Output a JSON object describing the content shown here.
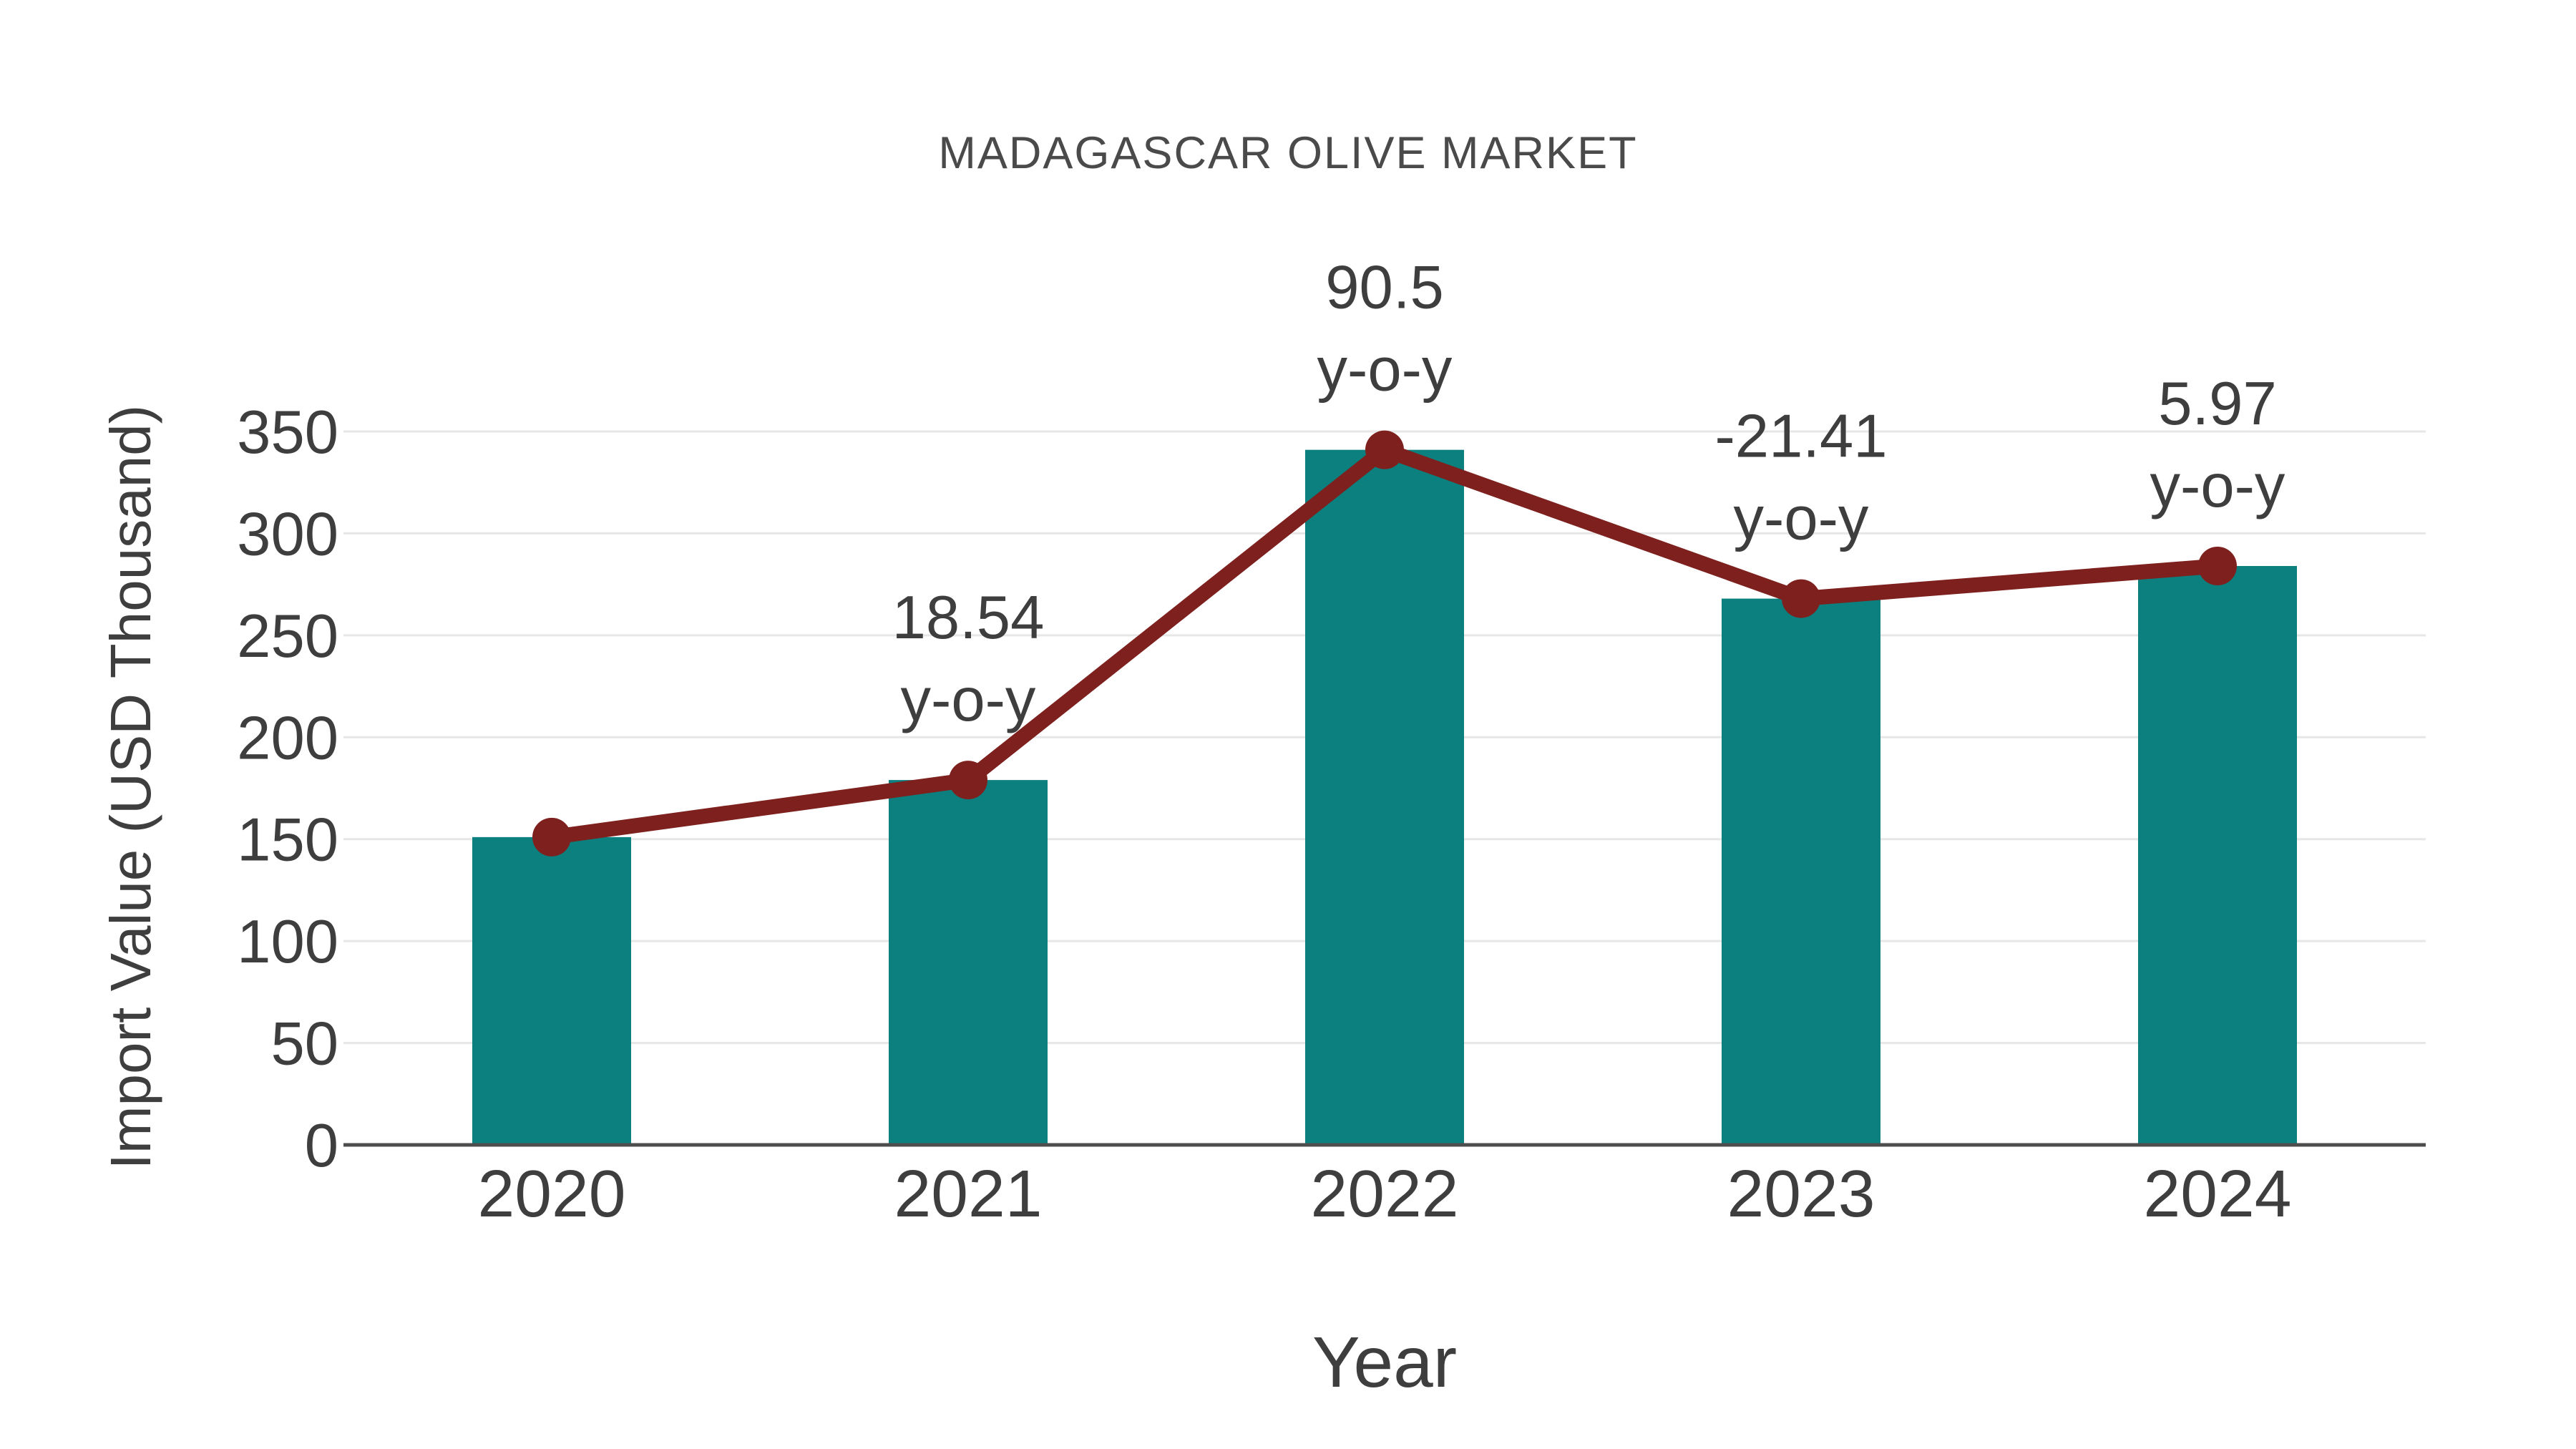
{
  "page": {
    "background": "#ffffff"
  },
  "chart_data": {
    "type": "bar",
    "title": "MADAGASCAR OLIVE MARKET",
    "xlabel": "Year",
    "ylabel": "Import Value (USD Thousand)",
    "categories": [
      "2020",
      "2021",
      "2022",
      "2023",
      "2024"
    ],
    "series": [
      {
        "type": "bar",
        "color": "#0b807e",
        "values": [
          151,
          179,
          341,
          268,
          284
        ]
      },
      {
        "type": "line",
        "color": "#7d201e",
        "values": [
          151,
          179,
          341,
          268,
          284
        ]
      }
    ],
    "yoy_annotations": {
      "suffix": "y-o-y",
      "labels": [
        "",
        "18.54",
        "90.5",
        "-21.41",
        "5.97"
      ]
    },
    "ylim": [
      0,
      350
    ],
    "yticks": [
      0,
      50,
      100,
      150,
      200,
      250,
      300,
      350
    ],
    "grid": "horizontal",
    "legend": "none",
    "colors": {
      "grid": "#e7e7e7",
      "axis": "#4d4d4d",
      "tick_text": "#3e3e3e",
      "annotation_text": "#3e3e3e",
      "title_text": "#4a4a4a"
    }
  }
}
